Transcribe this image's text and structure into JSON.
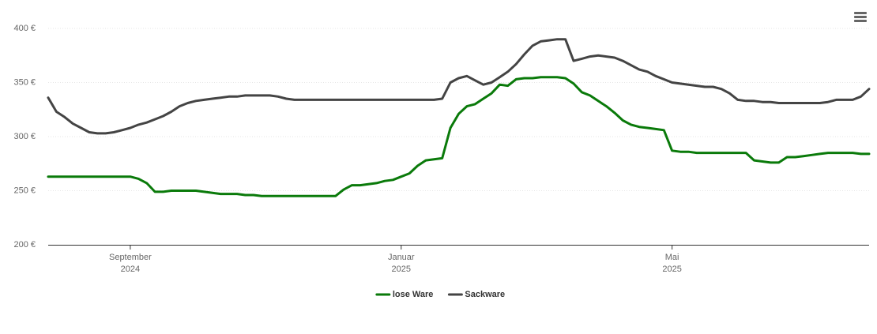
{
  "chart_data": {
    "type": "line",
    "categories": [
      null,
      null,
      null,
      null,
      null,
      null,
      null,
      null,
      null,
      null,
      "September\n2024",
      null,
      null,
      null,
      null,
      null,
      null,
      null,
      null,
      null,
      null,
      null,
      null,
      null,
      null,
      null,
      null,
      null,
      null,
      null,
      null,
      null,
      null,
      null,
      null,
      null,
      null,
      null,
      null,
      null,
      null,
      null,
      null,
      "Januar\n2025",
      null,
      null,
      null,
      null,
      null,
      null,
      null,
      null,
      null,
      null,
      null,
      null,
      null,
      null,
      null,
      null,
      null,
      null,
      null,
      null,
      null,
      null,
      null,
      null,
      null,
      null,
      null,
      null,
      null,
      null,
      null,
      null,
      "Mai\n2025",
      null,
      null,
      null,
      null,
      null,
      null,
      null,
      null,
      null,
      null,
      null,
      null,
      null,
      null,
      null,
      null,
      null,
      null,
      null,
      null,
      null,
      null,
      null,
      null
    ],
    "series": [
      {
        "name": "lose Ware",
        "color": "#0a7a0a",
        "values": [
          263,
          263,
          263,
          263,
          263,
          263,
          263,
          263,
          263,
          263,
          263,
          261,
          257,
          249,
          249,
          250,
          250,
          250,
          250,
          249,
          248,
          247,
          247,
          247,
          246,
          246,
          245,
          245,
          245,
          245,
          245,
          245,
          245,
          245,
          245,
          245,
          251,
          255,
          255,
          256,
          257,
          259,
          260,
          263,
          266,
          273,
          278,
          279,
          280,
          308,
          321,
          328,
          330,
          335,
          340,
          348,
          347,
          353,
          354,
          354,
          355,
          355,
          355,
          354,
          349,
          341,
          338,
          333,
          328,
          322,
          315,
          311,
          309,
          308,
          307,
          306,
          287,
          286,
          286,
          285,
          285,
          285,
          285,
          285,
          285,
          285,
          278,
          277,
          276,
          276,
          281,
          281,
          282,
          283,
          284,
          285,
          285,
          285,
          285,
          284,
          284
        ]
      },
      {
        "name": "Sackware",
        "color": "#444444",
        "values": [
          336,
          323,
          318,
          312,
          308,
          304,
          303,
          303,
          304,
          306,
          308,
          311,
          313,
          316,
          319,
          323,
          328,
          331,
          333,
          334,
          335,
          336,
          337,
          337,
          338,
          338,
          338,
          338,
          337,
          335,
          334,
          334,
          334,
          334,
          334,
          334,
          334,
          334,
          334,
          334,
          334,
          334,
          334,
          334,
          334,
          334,
          334,
          334,
          335,
          350,
          354,
          356,
          352,
          348,
          350,
          355,
          360,
          367,
          376,
          384,
          388,
          389,
          390,
          390,
          370,
          372,
          374,
          375,
          374,
          373,
          370,
          366,
          362,
          360,
          356,
          353,
          350,
          349,
          348,
          347,
          346,
          346,
          344,
          340,
          334,
          333,
          333,
          332,
          332,
          331,
          331,
          331,
          331,
          331,
          331,
          332,
          334,
          334,
          334,
          337,
          344
        ]
      }
    ],
    "ylim": [
      200,
      400
    ],
    "yticks": [
      {
        "value": 200,
        "label": "200 €"
      },
      {
        "value": 250,
        "label": "250 €"
      },
      {
        "value": 300,
        "label": "300 €"
      },
      {
        "value": 350,
        "label": "350 €"
      },
      {
        "value": 400,
        "label": "400 €"
      }
    ],
    "grid": true
  }
}
